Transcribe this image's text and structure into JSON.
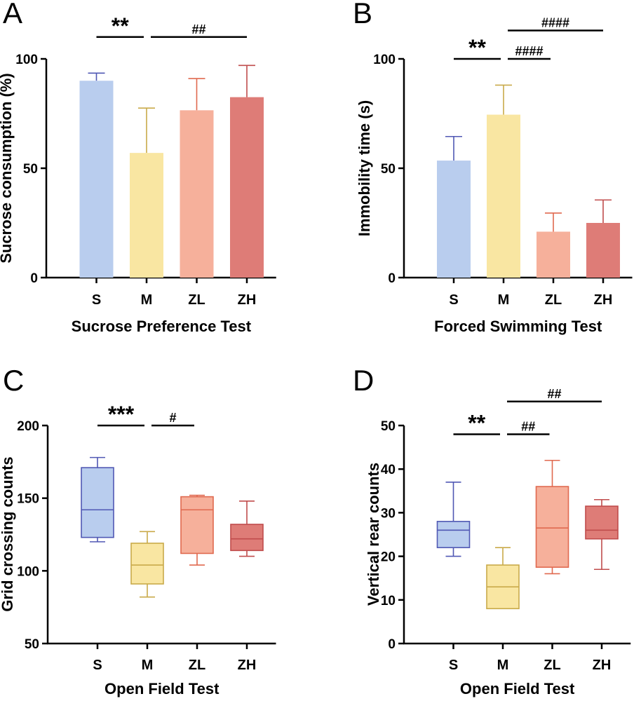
{
  "chart_data": [
    {
      "panel": "A",
      "type": "bar",
      "title": "",
      "xlabel": "Sucrose Preference Test",
      "ylabel": "Sucrose consumption (%)",
      "ylim": [
        0,
        100
      ],
      "yticks": [
        0,
        50,
        100
      ],
      "categories": [
        "S",
        "M",
        "ZL",
        "ZH"
      ],
      "values": [
        90,
        57,
        76.5,
        82.5
      ],
      "errors": [
        3.5,
        20.5,
        14.5,
        14.5
      ],
      "colors": [
        "#b9cdee",
        "#f9e6a2",
        "#f6b09b",
        "#de7c77"
      ],
      "error_colors": [
        "#5058b4",
        "#c9aa4a",
        "#e0694f",
        "#c04c4c"
      ],
      "significance": [
        {
          "from": 0,
          "to": 1,
          "label": "**",
          "y": 110
        },
        {
          "from": 1,
          "to": 3,
          "label": "##",
          "y": 110
        }
      ]
    },
    {
      "panel": "B",
      "type": "bar",
      "title": "",
      "xlabel": "Forced Swimming Test",
      "ylabel": "Immobility time (s)",
      "ylim": [
        0,
        100
      ],
      "yticks": [
        0,
        50,
        100
      ],
      "categories": [
        "S",
        "M",
        "ZL",
        "ZH"
      ],
      "values": [
        53.5,
        74.5,
        21,
        25
      ],
      "errors": [
        11,
        13.5,
        8.5,
        10.5
      ],
      "colors": [
        "#b9cdee",
        "#f9e6a2",
        "#f6b09b",
        "#de7c77"
      ],
      "error_colors": [
        "#5058b4",
        "#c9aa4a",
        "#e0694f",
        "#c04c4c"
      ],
      "significance": [
        {
          "from": 0,
          "to": 1,
          "label": "**",
          "y": 100
        },
        {
          "from": 1,
          "to": 2,
          "label": "####",
          "y": 100
        },
        {
          "from": 1,
          "to": 3,
          "label": "####",
          "y": 113
        }
      ]
    },
    {
      "panel": "C",
      "type": "box",
      "title": "",
      "xlabel": "Open Field Test",
      "ylabel": "Grid crossing counts",
      "ylim": [
        50,
        200
      ],
      "yticks": [
        50,
        100,
        150,
        200
      ],
      "categories": [
        "S",
        "M",
        "ZL",
        "ZH"
      ],
      "boxes": [
        {
          "min": 120,
          "q1": 123,
          "median": 142,
          "q3": 171,
          "max": 178
        },
        {
          "min": 82,
          "q1": 91,
          "median": 104,
          "q3": 119,
          "max": 127
        },
        {
          "min": 104,
          "q1": 112,
          "median": 142,
          "q3": 151,
          "max": 152
        },
        {
          "min": 110,
          "q1": 114,
          "median": 122,
          "q3": 132,
          "max": 148
        }
      ],
      "colors": [
        "#b9cdee",
        "#f9e6a2",
        "#f6b09b",
        "#de7c77"
      ],
      "line_colors": [
        "#5058b4",
        "#c9aa4a",
        "#e0694f",
        "#c04c4c"
      ],
      "significance": [
        {
          "from": 0,
          "to": 1,
          "label": "***",
          "y": 200
        },
        {
          "from": 1,
          "to": 2,
          "label": "#",
          "y": 200
        }
      ]
    },
    {
      "panel": "D",
      "type": "box",
      "title": "",
      "xlabel": "Open Field Test",
      "ylabel": "Vertical rear counts",
      "ylim": [
        0,
        50
      ],
      "yticks": [
        0,
        10,
        20,
        30,
        40,
        50
      ],
      "categories": [
        "S",
        "M",
        "ZL",
        "ZH"
      ],
      "boxes": [
        {
          "min": 20,
          "q1": 22,
          "median": 26,
          "q3": 28,
          "max": 37
        },
        {
          "min": 8,
          "q1": 8,
          "median": 13,
          "q3": 18,
          "max": 22
        },
        {
          "min": 16,
          "q1": 17.5,
          "median": 26.5,
          "q3": 36,
          "max": 42
        },
        {
          "min": 17,
          "q1": 24,
          "median": 26,
          "q3": 31.5,
          "max": 33
        }
      ],
      "colors": [
        "#b9cdee",
        "#f9e6a2",
        "#f6b09b",
        "#de7c77"
      ],
      "line_colors": [
        "#5058b4",
        "#c9aa4a",
        "#e0694f",
        "#c04c4c"
      ],
      "significance": [
        {
          "from": 0,
          "to": 1,
          "label": "**",
          "y": 48
        },
        {
          "from": 1,
          "to": 2,
          "label": "##",
          "y": 48
        },
        {
          "from": 1,
          "to": 3,
          "label": "##",
          "y": 55.5
        }
      ]
    }
  ]
}
